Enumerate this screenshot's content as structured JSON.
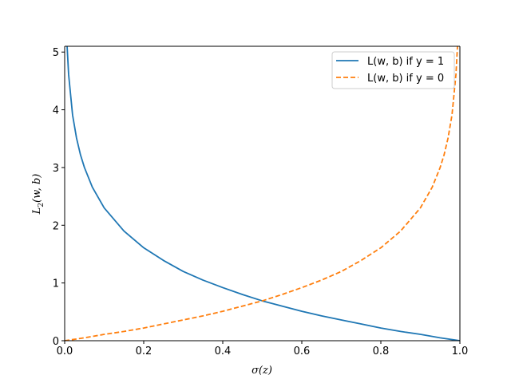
{
  "chart_data": {
    "type": "line",
    "xlabel": "σ(z)",
    "ylabel_main": "L",
    "ylabel_sub": "2",
    "ylabel_args": "(w, b)",
    "xlim": [
      0,
      1.0
    ],
    "ylim": [
      0,
      5.1
    ],
    "xticks": [
      "0.0",
      "0.2",
      "0.4",
      "0.6",
      "0.8",
      "1.0"
    ],
    "xtick_values": [
      0,
      0.2,
      0.4,
      0.6,
      0.8,
      1.0
    ],
    "yticks": [
      "0",
      "1",
      "2",
      "3",
      "4",
      "5"
    ],
    "ytick_values": [
      0,
      1,
      2,
      3,
      4,
      5
    ],
    "grid": false,
    "legend_position": "top-right",
    "series": [
      {
        "name": "L(w, b) if y = 1",
        "color": "#1f77b4",
        "style": "solid",
        "x": [
          0.006,
          0.01,
          0.02,
          0.03,
          0.04,
          0.05,
          0.07,
          0.1,
          0.15,
          0.2,
          0.25,
          0.3,
          0.35,
          0.4,
          0.45,
          0.5,
          0.55,
          0.6,
          0.65,
          0.7,
          0.75,
          0.8,
          0.85,
          0.9,
          0.95,
          0.99,
          1.0
        ],
        "y": [
          5.12,
          4.61,
          3.91,
          3.51,
          3.22,
          3.0,
          2.66,
          2.3,
          1.9,
          1.61,
          1.39,
          1.2,
          1.05,
          0.92,
          0.8,
          0.69,
          0.6,
          0.51,
          0.43,
          0.36,
          0.29,
          0.22,
          0.16,
          0.11,
          0.05,
          0.01,
          0.0
        ]
      },
      {
        "name": "L(w, b) if y = 0",
        "color": "#ff7f0e",
        "style": "dashed",
        "x": [
          0.0,
          0.01,
          0.05,
          0.1,
          0.15,
          0.2,
          0.25,
          0.3,
          0.35,
          0.4,
          0.45,
          0.5,
          0.55,
          0.6,
          0.65,
          0.7,
          0.75,
          0.8,
          0.85,
          0.9,
          0.93,
          0.95,
          0.96,
          0.97,
          0.98,
          0.99,
          0.994
        ],
        "y": [
          0.0,
          0.01,
          0.05,
          0.11,
          0.16,
          0.22,
          0.29,
          0.36,
          0.43,
          0.51,
          0.6,
          0.69,
          0.8,
          0.92,
          1.05,
          1.2,
          1.39,
          1.61,
          1.9,
          2.3,
          2.66,
          3.0,
          3.22,
          3.51,
          3.91,
          4.61,
          5.12
        ]
      }
    ]
  }
}
